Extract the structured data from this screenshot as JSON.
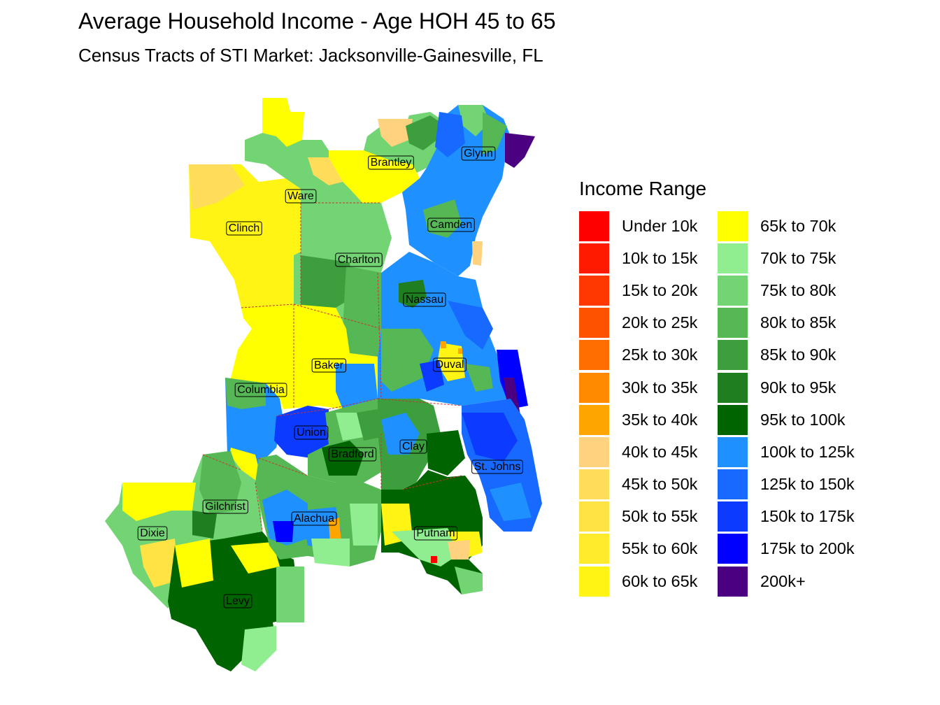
{
  "header": {
    "title": "Average Household Income - Age HOH 45 to 65",
    "subtitle": "Census Tracts of STI Market: Jacksonville-Gainesville, FL"
  },
  "legend": {
    "title": "Income Range",
    "items": [
      {
        "label": "Under 10k",
        "color": "#ff0000"
      },
      {
        "label": "10k to 15k",
        "color": "#ff1a00"
      },
      {
        "label": "15k to 20k",
        "color": "#ff3700"
      },
      {
        "label": "20k to 25k",
        "color": "#ff5200"
      },
      {
        "label": "25k to 30k",
        "color": "#ff6e00"
      },
      {
        "label": "30k to 35k",
        "color": "#ff8a00"
      },
      {
        "label": "35k to 40k",
        "color": "#ffa500"
      },
      {
        "label": "40k to 45k",
        "color": "#ffd27f"
      },
      {
        "label": "45k to 50k",
        "color": "#ffdc5a"
      },
      {
        "label": "50k to 55k",
        "color": "#ffe344"
      },
      {
        "label": "55k to 60k",
        "color": "#ffea2c"
      },
      {
        "label": "60k to 65k",
        "color": "#fff414"
      },
      {
        "label": "65k to 70k",
        "color": "#ffff00"
      },
      {
        "label": "70k to 75k",
        "color": "#90ee90"
      },
      {
        "label": "75k to 80k",
        "color": "#72d472"
      },
      {
        "label": "80k to 85k",
        "color": "#55b855"
      },
      {
        "label": "85k to 90k",
        "color": "#3c9e3c"
      },
      {
        "label": "90k to 95k",
        "color": "#1f7e1f"
      },
      {
        "label": "95k to 100k",
        "color": "#006400"
      },
      {
        "label": "100k to 125k",
        "color": "#1e90ff"
      },
      {
        "label": "125k to 150k",
        "color": "#1769ff"
      },
      {
        "label": "150k to 175k",
        "color": "#0c3aff"
      },
      {
        "label": "175k to 200k",
        "color": "#0000ff"
      },
      {
        "label": "200k+",
        "color": "#4b0082"
      }
    ]
  },
  "map": {
    "counties": [
      {
        "name": "Glynn",
        "income_class": "100k to 125k"
      },
      {
        "name": "Brantley",
        "income_class": "65k to 70k"
      },
      {
        "name": "Ware",
        "income_class": "75k to 80k"
      },
      {
        "name": "Clinch",
        "income_class": "60k to 65k"
      },
      {
        "name": "Camden",
        "income_class": "100k to 125k"
      },
      {
        "name": "Charlton",
        "income_class": "85k to 90k"
      },
      {
        "name": "Nassau",
        "income_class": "100k to 125k"
      },
      {
        "name": "Baker",
        "income_class": "65k to 70k"
      },
      {
        "name": "Duval",
        "income_class": "100k to 125k"
      },
      {
        "name": "Columbia",
        "income_class": "80k to 85k"
      },
      {
        "name": "Union",
        "income_class": "150k to 175k"
      },
      {
        "name": "Bradford",
        "income_class": "85k to 90k"
      },
      {
        "name": "Clay",
        "income_class": "100k to 125k"
      },
      {
        "name": "St. Johns",
        "income_class": "150k to 175k"
      },
      {
        "name": "Gilchrist",
        "income_class": "80k to 85k"
      },
      {
        "name": "Alachua",
        "income_class": "100k to 125k"
      },
      {
        "name": "Dixie",
        "income_class": "75k to 80k"
      },
      {
        "name": "Putnam",
        "income_class": "75k to 80k"
      },
      {
        "name": "Levy",
        "income_class": "95k to 100k"
      }
    ]
  }
}
